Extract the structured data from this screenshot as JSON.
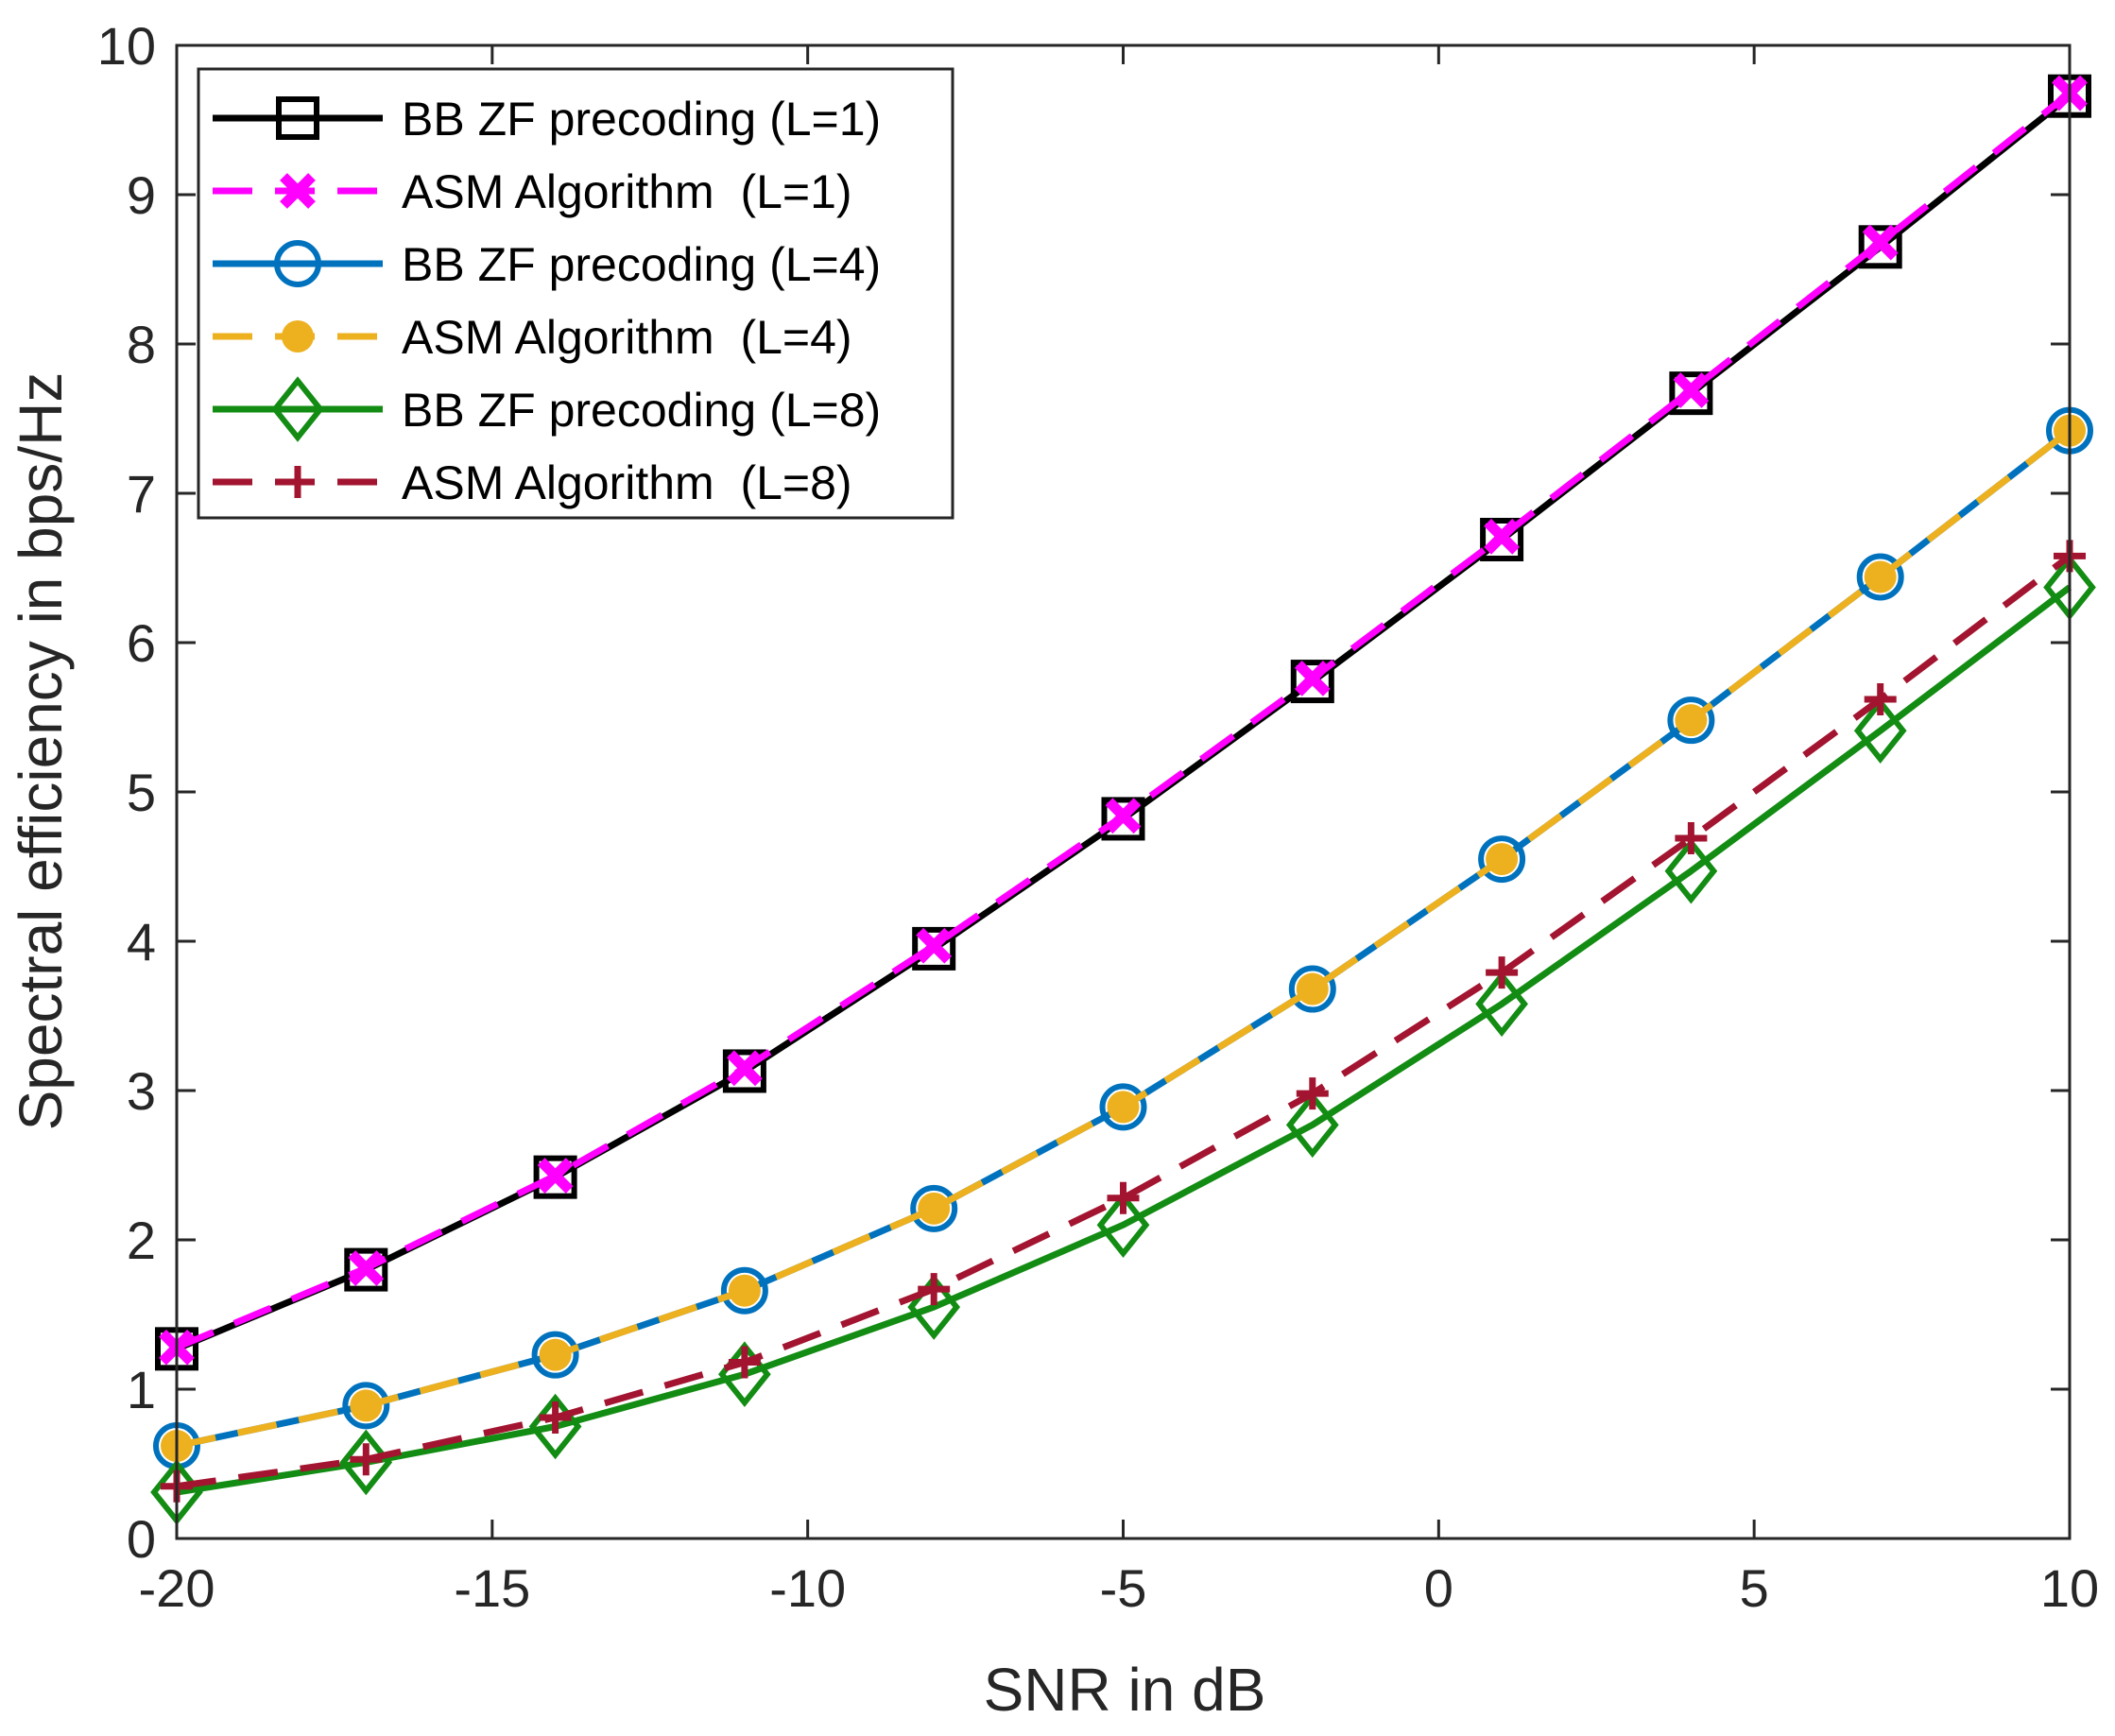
{
  "chart_data": {
    "type": "line",
    "title": "",
    "xlabel": "SNR in dB",
    "ylabel": "Spectral efficiency in bps/Hz",
    "xlim": [
      -20,
      10
    ],
    "ylim": [
      0,
      10
    ],
    "xticks": [
      -20,
      -15,
      -10,
      -5,
      0,
      5,
      10
    ],
    "yticks": [
      0,
      1,
      2,
      3,
      4,
      5,
      6,
      7,
      8,
      9,
      10
    ],
    "grid": false,
    "legend_position": "top-left",
    "x": [
      -20,
      -17,
      -14,
      -11,
      -8,
      -5,
      -2,
      1,
      4,
      7,
      10
    ],
    "series": [
      {
        "name": "BB ZF precoding (L=1)",
        "color": "#000000",
        "dash": "solid",
        "marker": "square",
        "values": [
          1.27,
          1.8,
          2.42,
          3.13,
          3.95,
          4.82,
          5.74,
          6.69,
          7.67,
          8.65,
          9.66
        ]
      },
      {
        "name": "ASM Algorithm  (L=1)",
        "color": "#FF00FF",
        "dash": "dashed",
        "marker": "x",
        "values": [
          1.28,
          1.81,
          2.43,
          3.15,
          3.97,
          4.84,
          5.76,
          6.71,
          7.69,
          8.68,
          9.68
        ]
      },
      {
        "name": "BB ZF precoding (L=4)",
        "color": "#0072BD",
        "dash": "solid",
        "marker": "circle",
        "values": [
          0.62,
          0.89,
          1.23,
          1.66,
          2.21,
          2.89,
          3.68,
          4.55,
          5.48,
          6.44,
          7.42
        ]
      },
      {
        "name": "ASM Algorithm  (L=4)",
        "color": "#EDB120",
        "dash": "dashed",
        "marker": "dot",
        "values": [
          0.62,
          0.89,
          1.23,
          1.66,
          2.21,
          2.89,
          3.68,
          4.55,
          5.48,
          6.44,
          7.42
        ]
      },
      {
        "name": "BB ZF precoding (L=8)",
        "color": "#138C13",
        "dash": "solid",
        "marker": "diamond",
        "values": [
          0.31,
          0.51,
          0.75,
          1.1,
          1.55,
          2.1,
          2.77,
          3.58,
          4.47,
          5.41,
          6.37
        ]
      },
      {
        "name": "ASM Algorithm  (L=8)",
        "color": "#A2142F",
        "dash": "dashed",
        "marker": "plus",
        "values": [
          0.35,
          0.53,
          0.81,
          1.18,
          1.67,
          2.28,
          2.98,
          3.79,
          4.69,
          5.62,
          6.58
        ]
      }
    ]
  }
}
